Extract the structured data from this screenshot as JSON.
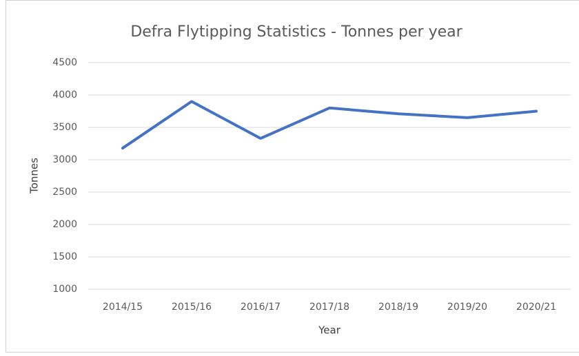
{
  "chart_data": {
    "type": "line",
    "title": "Defra Flytipping Statistics - Tonnes per year",
    "x_label": "Year",
    "y_label": "Tonnes",
    "categories": [
      "2014/15",
      "2015/16",
      "2016/17",
      "2017/18",
      "2018/19",
      "2019/20",
      "2020/21"
    ],
    "series": [
      {
        "name": "Tonnes",
        "color": "#4472c4",
        "values": [
          3180,
          3900,
          3330,
          3800,
          3710,
          3650,
          3750
        ]
      }
    ],
    "ylim": [
      1000,
      4500
    ],
    "yticks": [
      1000,
      1500,
      2000,
      2500,
      3000,
      3500,
      4000,
      4500
    ],
    "grid": true
  }
}
